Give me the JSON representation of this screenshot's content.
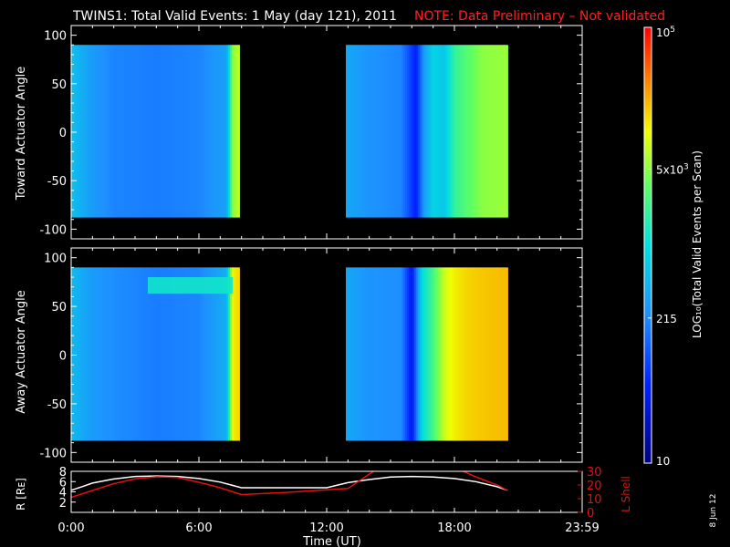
{
  "header": {
    "title": "TWINS1: Total Valid Events:  1 May (day 121), 2011",
    "note": "NOTE: Data Preliminary – Not validated"
  },
  "stamp": "8 Jun 12",
  "colors": {
    "background": "#000000",
    "axes": "#ffffff",
    "note": "#ff2020",
    "rline": "#ffffff",
    "lshell": "#e01010"
  },
  "chart_data": [
    {
      "type": "heatmap",
      "id": "toward",
      "ylabel": "Toward Actuator Angle",
      "xlim": [
        0,
        24
      ],
      "ylim": [
        -110,
        110
      ],
      "yticks": [
        -100,
        -50,
        0,
        50,
        100
      ],
      "data_yrange": [
        -88,
        90
      ],
      "segments": [
        {
          "x_start": 0.0,
          "x_end": 7.9
        },
        {
          "x_start": 12.9,
          "x_end": 20.5
        }
      ],
      "columns_log10": [
        {
          "x": 0.0,
          "v": 2.75
        },
        {
          "x": 1.0,
          "v": 2.45
        },
        {
          "x": 2.0,
          "v": 2.3
        },
        {
          "x": 4.0,
          "v": 2.25
        },
        {
          "x": 6.0,
          "v": 2.3
        },
        {
          "x": 7.3,
          "v": 2.5
        },
        {
          "x": 7.6,
          "v": 3.7
        },
        {
          "x": 7.9,
          "v": 3.9
        },
        {
          "x": 12.9,
          "v": 2.55
        },
        {
          "x": 14.0,
          "v": 2.4
        },
        {
          "x": 15.5,
          "v": 2.3
        },
        {
          "x": 16.2,
          "v": 1.7
        },
        {
          "x": 16.6,
          "v": 2.5
        },
        {
          "x": 17.0,
          "v": 2.9
        },
        {
          "x": 17.5,
          "v": 2.8
        },
        {
          "x": 18.0,
          "v": 3.3
        },
        {
          "x": 18.6,
          "v": 3.5
        },
        {
          "x": 19.3,
          "v": 3.7
        },
        {
          "x": 20.5,
          "v": 3.75
        }
      ]
    },
    {
      "type": "heatmap",
      "id": "away",
      "ylabel": "Away Actuator Angle",
      "xlim": [
        0,
        24
      ],
      "ylim": [
        -110,
        110
      ],
      "yticks": [
        -100,
        -50,
        0,
        50,
        100
      ],
      "data_yrange": [
        -88,
        90
      ],
      "segments": [
        {
          "x_start": 0.0,
          "x_end": 7.9
        },
        {
          "x_start": 12.9,
          "x_end": 20.5
        }
      ],
      "columns_log10": [
        {
          "x": 0.0,
          "v": 2.7
        },
        {
          "x": 1.0,
          "v": 2.45
        },
        {
          "x": 2.0,
          "v": 2.35
        },
        {
          "x": 4.0,
          "v": 2.25
        },
        {
          "x": 6.0,
          "v": 2.3
        },
        {
          "x": 7.3,
          "v": 2.6
        },
        {
          "x": 7.6,
          "v": 4.1
        },
        {
          "x": 7.9,
          "v": 4.2
        },
        {
          "x": 12.9,
          "v": 2.55
        },
        {
          "x": 14.0,
          "v": 2.4
        },
        {
          "x": 15.5,
          "v": 2.35
        },
        {
          "x": 16.0,
          "v": 1.6
        },
        {
          "x": 16.5,
          "v": 3.0
        },
        {
          "x": 17.0,
          "v": 3.4
        },
        {
          "x": 17.5,
          "v": 3.9
        },
        {
          "x": 18.0,
          "v": 4.1
        },
        {
          "x": 18.6,
          "v": 4.2
        },
        {
          "x": 19.3,
          "v": 4.25
        },
        {
          "x": 20.5,
          "v": 4.3
        }
      ],
      "band": {
        "x_start": 3.6,
        "x_end": 7.6,
        "y_start": 63,
        "y_end": 80,
        "v": 3.1
      }
    },
    {
      "type": "line",
      "id": "ephemeris",
      "ylabel": "R [Rᴇ]",
      "ylabel_right": "L Shell",
      "xlabel": "Time (UT)",
      "xlim": [
        0,
        24
      ],
      "xticks": [
        "0:00",
        "6:00",
        "12:00",
        "18:00",
        "23:59"
      ],
      "xtick_values": [
        0,
        6,
        12,
        18,
        24
      ],
      "ylim_left": [
        0,
        8
      ],
      "yticks_left": [
        2,
        4,
        6,
        8
      ],
      "ylim_right": [
        0,
        30
      ],
      "yticks_right": [
        0,
        10,
        20,
        30
      ],
      "series": [
        {
          "axis": "left",
          "x": [
            0,
            0.5,
            1,
            2,
            3,
            4,
            5,
            6,
            7,
            8,
            10,
            12,
            13,
            14,
            15,
            16,
            17,
            18,
            19,
            20,
            20.5
          ],
          "y": [
            4.3,
            5.0,
            5.7,
            6.5,
            7.0,
            7.1,
            7.0,
            6.6,
            5.9,
            4.8,
            4.8,
            4.8,
            5.8,
            6.4,
            6.9,
            7.0,
            6.9,
            6.6,
            6.0,
            5.0,
            4.3
          ]
        },
        {
          "axis": "right",
          "x": [
            0,
            1,
            2,
            3,
            4,
            5,
            6,
            7,
            8,
            10,
            12,
            13,
            14,
            14.5,
            18,
            19,
            20,
            20.5
          ],
          "y": [
            11,
            16,
            21,
            24.5,
            26,
            25.5,
            22,
            18,
            13,
            14.5,
            16.5,
            17.5,
            28,
            33,
            33,
            26,
            20,
            16
          ]
        }
      ]
    }
  ],
  "colorbar": {
    "label": "LOG₁₀(Total Valid Events per Scan)",
    "range_log10": [
      1,
      5
    ],
    "ticks": [
      {
        "v": 5,
        "base": "10",
        "exp": "5"
      },
      {
        "v": 3.699,
        "base": "5x10",
        "exp": "3"
      },
      {
        "v": 2.332,
        "base": "215",
        "exp": ""
      },
      {
        "v": 1,
        "base": "10",
        "exp": ""
      }
    ]
  }
}
